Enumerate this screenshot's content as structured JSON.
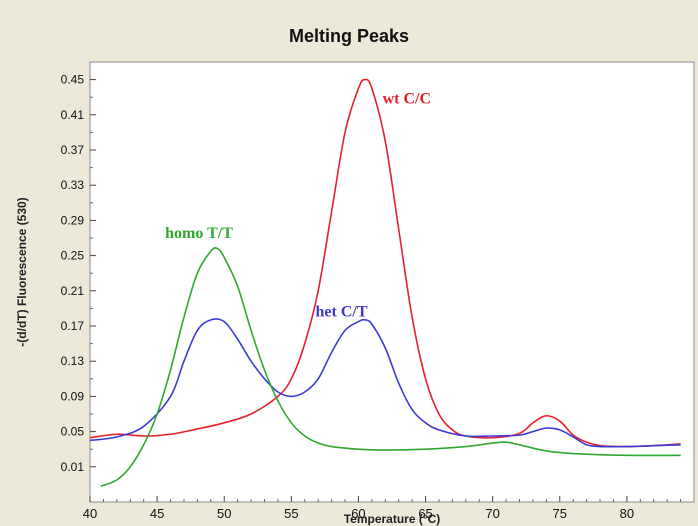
{
  "chart_data": {
    "type": "line",
    "title": "Melting Peaks",
    "xlabel": "Temperature (°C)",
    "ylabel": "-(d/dT) Fluorescence (530)",
    "xlim": [
      40,
      85
    ],
    "ylim": [
      -0.03,
      0.47
    ],
    "x_ticks": [
      "40",
      "45",
      "50",
      "55",
      "60",
      "65",
      "70",
      "75",
      "80"
    ],
    "x_tick_values": [
      40,
      45,
      50,
      55,
      60,
      65,
      70,
      75,
      80
    ],
    "y_ticks": [
      "0.45",
      "0.41",
      "0.37",
      "0.33",
      "0.29",
      "0.25",
      "0.21",
      "0.17",
      "0.13",
      "0.09",
      "0.05",
      "0.01"
    ],
    "y_tick_values": [
      0.45,
      0.41,
      0.37,
      0.33,
      0.29,
      0.25,
      0.21,
      0.17,
      0.13,
      0.09,
      0.05,
      0.01
    ],
    "grid": false,
    "series": [
      {
        "name": "wt C/C",
        "color": "#e8202a",
        "label_at": [
          61.8,
          0.423
        ],
        "points": [
          [
            40,
            0.043
          ],
          [
            42,
            0.047
          ],
          [
            44,
            0.045
          ],
          [
            46,
            0.047
          ],
          [
            48,
            0.053
          ],
          [
            50,
            0.06
          ],
          [
            52,
            0.07
          ],
          [
            54,
            0.09
          ],
          [
            55,
            0.11
          ],
          [
            56,
            0.15
          ],
          [
            57,
            0.21
          ],
          [
            58,
            0.3
          ],
          [
            59,
            0.39
          ],
          [
            60,
            0.44
          ],
          [
            60.5,
            0.45
          ],
          [
            61,
            0.44
          ],
          [
            62,
            0.38
          ],
          [
            63,
            0.28
          ],
          [
            64,
            0.18
          ],
          [
            65,
            0.11
          ],
          [
            66,
            0.07
          ],
          [
            67,
            0.052
          ],
          [
            68,
            0.045
          ],
          [
            70,
            0.043
          ],
          [
            72,
            0.048
          ],
          [
            73,
            0.06
          ],
          [
            74,
            0.068
          ],
          [
            75,
            0.062
          ],
          [
            76,
            0.046
          ],
          [
            77,
            0.038
          ],
          [
            78,
            0.034
          ],
          [
            80,
            0.033
          ],
          [
            82,
            0.034
          ],
          [
            84,
            0.036
          ]
        ]
      },
      {
        "name": "het C/T",
        "color": "#3b3bd4",
        "label_at": [
          56.8,
          0.181
        ],
        "points": [
          [
            40,
            0.04
          ],
          [
            42,
            0.044
          ],
          [
            44,
            0.056
          ],
          [
            46,
            0.09
          ],
          [
            47,
            0.13
          ],
          [
            48,
            0.165
          ],
          [
            49,
            0.177
          ],
          [
            50,
            0.175
          ],
          [
            51,
            0.155
          ],
          [
            52,
            0.13
          ],
          [
            53,
            0.11
          ],
          [
            54,
            0.095
          ],
          [
            55,
            0.09
          ],
          [
            56,
            0.095
          ],
          [
            57,
            0.11
          ],
          [
            58,
            0.14
          ],
          [
            59,
            0.165
          ],
          [
            60,
            0.175
          ],
          [
            60.5,
            0.177
          ],
          [
            61,
            0.172
          ],
          [
            62,
            0.145
          ],
          [
            63,
            0.105
          ],
          [
            64,
            0.075
          ],
          [
            65,
            0.06
          ],
          [
            66,
            0.052
          ],
          [
            68,
            0.045
          ],
          [
            70,
            0.045
          ],
          [
            72,
            0.046
          ],
          [
            73,
            0.05
          ],
          [
            74,
            0.054
          ],
          [
            75,
            0.052
          ],
          [
            76,
            0.044
          ],
          [
            77,
            0.035
          ],
          [
            78,
            0.033
          ],
          [
            80,
            0.033
          ],
          [
            82,
            0.034
          ],
          [
            84,
            0.035
          ]
        ]
      },
      {
        "name": "homo T/T",
        "color": "#2ea82e",
        "label_at": [
          45.6,
          0.27
        ],
        "points": [
          [
            40.8,
            -0.012
          ],
          [
            42,
            -0.005
          ],
          [
            43,
            0.01
          ],
          [
            44,
            0.035
          ],
          [
            45,
            0.07
          ],
          [
            46,
            0.12
          ],
          [
            47,
            0.18
          ],
          [
            48,
            0.23
          ],
          [
            49,
            0.255
          ],
          [
            49.5,
            0.258
          ],
          [
            50,
            0.248
          ],
          [
            51,
            0.215
          ],
          [
            52,
            0.165
          ],
          [
            53,
            0.12
          ],
          [
            54,
            0.085
          ],
          [
            55,
            0.06
          ],
          [
            56,
            0.045
          ],
          [
            57,
            0.037
          ],
          [
            58,
            0.033
          ],
          [
            60,
            0.03
          ],
          [
            62,
            0.029
          ],
          [
            65,
            0.03
          ],
          [
            68,
            0.033
          ],
          [
            70,
            0.037
          ],
          [
            71,
            0.038
          ],
          [
            72,
            0.035
          ],
          [
            74,
            0.028
          ],
          [
            76,
            0.025
          ],
          [
            80,
            0.023
          ],
          [
            84,
            0.023
          ]
        ]
      }
    ]
  }
}
